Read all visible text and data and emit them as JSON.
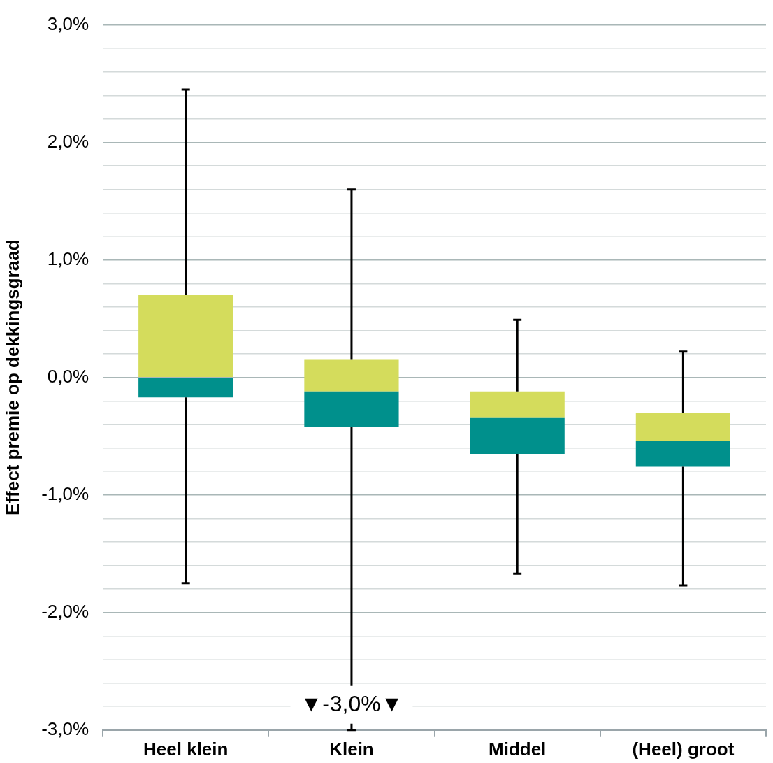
{
  "chart_data": {
    "type": "box",
    "ylabel": "Effect premie op dekkingsgraad",
    "categories": [
      "Heel klein",
      "Klein",
      "Middel",
      "(Heel) groot"
    ],
    "boxes": [
      {
        "low": -1.75,
        "q1": -0.17,
        "median": 0.0,
        "q3": 0.7,
        "high": 2.45
      },
      {
        "low": -3.0,
        "q1": -0.42,
        "median": -0.12,
        "q3": 0.15,
        "high": 1.6
      },
      {
        "low": -1.67,
        "q1": -0.65,
        "median": -0.34,
        "q3": -0.12,
        "high": 0.49
      },
      {
        "low": -1.77,
        "q1": -0.76,
        "median": -0.54,
        "q3": -0.3,
        "high": 0.22
      }
    ],
    "colors": [
      "#00908c",
      "#00908c",
      "#00908c",
      "#00908c"
    ],
    "color": "#d4dc5c",
    "ylim": [
      -3.0,
      3.0
    ],
    "yticks": [
      {
        "value": -3.0,
        "label": "-3,0%"
      },
      {
        "value": -2.8,
        "label": null
      },
      {
        "value": -2.6,
        "label": null
      },
      {
        "value": -2.4,
        "label": null
      },
      {
        "value": -2.2,
        "label": null
      },
      {
        "value": -2.0,
        "label": "-2,0%"
      },
      {
        "value": -1.8,
        "label": null
      },
      {
        "value": -1.6,
        "label": null
      },
      {
        "value": -1.4,
        "label": null
      },
      {
        "value": -1.2,
        "label": null
      },
      {
        "value": -1.0,
        "label": "-1,0%"
      },
      {
        "value": -0.8,
        "label": null
      },
      {
        "value": -0.6,
        "label": null
      },
      {
        "value": -0.4,
        "label": null
      },
      {
        "value": -0.2,
        "label": null
      },
      {
        "value": 0.0,
        "label": "0,0%"
      },
      {
        "value": 0.2,
        "label": null
      },
      {
        "value": 0.4,
        "label": null
      },
      {
        "value": 0.6,
        "label": null
      },
      {
        "value": 0.8,
        "label": null
      },
      {
        "value": 1.0,
        "label": "1,0%"
      },
      {
        "value": 1.2,
        "label": null
      },
      {
        "value": 1.4,
        "label": null
      },
      {
        "value": 1.6,
        "label": null
      },
      {
        "value": 1.8,
        "label": null
      },
      {
        "value": 2.0,
        "label": "2,0%"
      },
      {
        "value": 2.2,
        "label": null
      },
      {
        "value": 2.4,
        "label": null
      },
      {
        "value": 2.6,
        "label": null
      },
      {
        "value": 2.8,
        "label": null
      },
      {
        "value": 3.0,
        "label": "3,0%"
      }
    ],
    "grid": "y",
    "annotations": [
      {
        "text": "▼-3,0%▼",
        "x": "Klein",
        "y": -3.0
      }
    ]
  }
}
